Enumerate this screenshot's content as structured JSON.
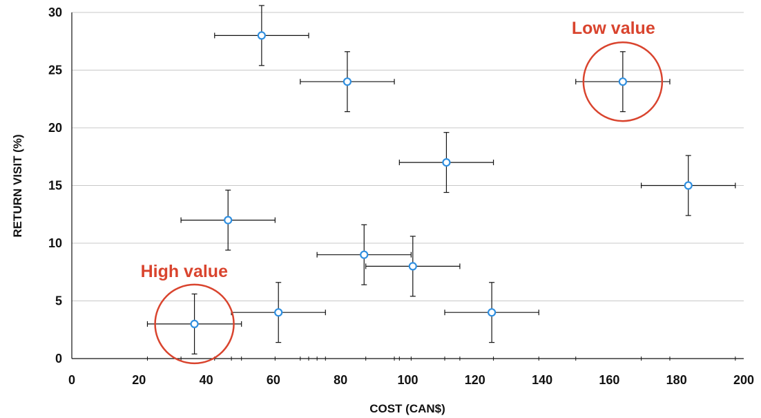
{
  "chart_data": {
    "type": "scatter",
    "title": "",
    "xlabel": "COST (CAN$)",
    "ylabel": "RETURN VISIT (%)",
    "xlim": [
      0,
      200
    ],
    "ylim": [
      0,
      30
    ],
    "x_ticks": [
      "0",
      "20",
      "40",
      "60",
      "80",
      "100",
      "120",
      "140",
      "160",
      "180",
      "200"
    ],
    "y_ticks": [
      "0",
      "5",
      "10",
      "15",
      "20",
      "25",
      "30"
    ],
    "grid": "horizontal",
    "points": [
      {
        "x": 56.5,
        "y": 28,
        "x_err": 14,
        "y_err": 2.6
      },
      {
        "x": 82,
        "y": 24,
        "x_err": 14,
        "y_err": 2.6
      },
      {
        "x": 164,
        "y": 24,
        "x_err": 14,
        "y_err": 2.6
      },
      {
        "x": 111.5,
        "y": 17,
        "x_err": 14,
        "y_err": 2.6
      },
      {
        "x": 183.5,
        "y": 15,
        "x_err": 14,
        "y_err": 2.6
      },
      {
        "x": 46.5,
        "y": 12,
        "x_err": 14,
        "y_err": 2.6
      },
      {
        "x": 87,
        "y": 9,
        "x_err": 14,
        "y_err": 2.6
      },
      {
        "x": 101.5,
        "y": 8,
        "x_err": 14,
        "y_err": 2.6
      },
      {
        "x": 36.5,
        "y": 3,
        "x_err": 14,
        "y_err": 2.6
      },
      {
        "x": 61.5,
        "y": 4,
        "x_err": 14,
        "y_err": 2.6
      },
      {
        "x": 125,
        "y": 4,
        "x_err": 14,
        "y_err": 2.6
      }
    ],
    "annotations": [
      {
        "text": "Low value",
        "circle_point_index": 2
      },
      {
        "text": "High value",
        "circle_point_index": 8
      }
    ],
    "colors": {
      "marker": "#2f8fe0",
      "error_bar": "#111111",
      "grid": "#c8c8c8",
      "annotation": "#d9442e"
    }
  }
}
